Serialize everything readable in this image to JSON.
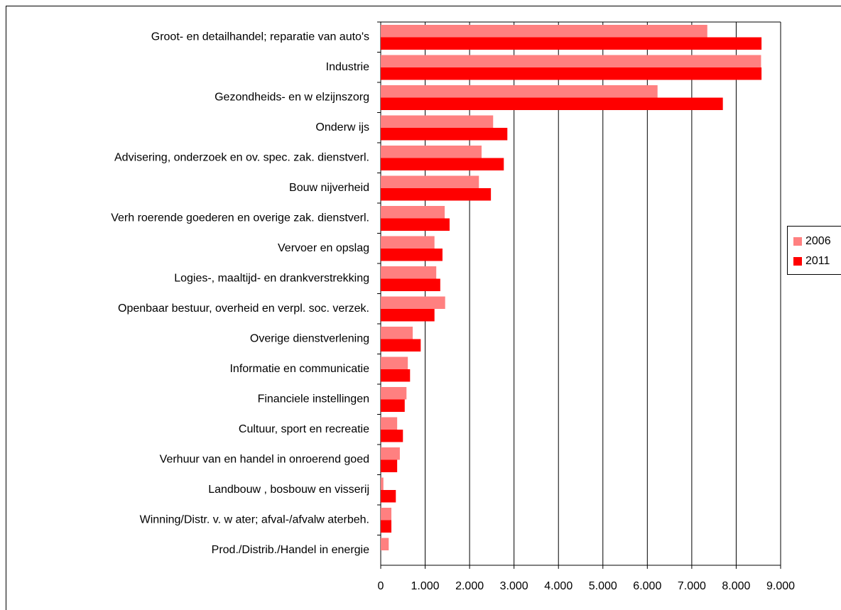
{
  "chart_data": {
    "type": "hbar",
    "categories": [
      "Groot- en detailhandel; reparatie van auto's",
      "Industrie",
      "Gezondheids- en w elzijnszorg",
      "Onderw ijs",
      "Advisering, onderzoek en ov. spec. zak. dienstverl.",
      "Bouw nijverheid",
      "Verh roerende goederen en overige zak. dienstverl.",
      "Vervoer en opslag",
      "Logies-, maaltijd- en drankverstrekking",
      "Openbaar bestuur, overheid en verpl. soc. verzek.",
      "Overige dienstverlening",
      "Informatie en communicatie",
      "Financiele instellingen",
      "Cultuur, sport en recreatie",
      "Verhuur van en handel in onroerend goed",
      "Landbouw , bosbouw en visserij",
      "Winning/Distr. v. w ater; afval-/afvalw aterbeh.",
      "Prod./Distrib./Handel in energie"
    ],
    "series": [
      {
        "name": "2006",
        "color": "#ff8080",
        "values": [
          7350,
          8560,
          6230,
          2530,
          2270,
          2210,
          1440,
          1210,
          1250,
          1450,
          720,
          610,
          580,
          370,
          430,
          60,
          240,
          180
        ]
      },
      {
        "name": "2011",
        "color": "#ff0000",
        "values": [
          8570,
          8570,
          7700,
          2850,
          2770,
          2480,
          1550,
          1390,
          1340,
          1210,
          900,
          660,
          540,
          500,
          370,
          340,
          240,
          0
        ]
      }
    ],
    "xlim": [
      0,
      9000
    ],
    "xticks": [
      0,
      {
        "value": 1000,
        "label": "1.000"
      },
      {
        "value": 2000,
        "label": "2.000"
      },
      {
        "value": 3000,
        "label": "3.000"
      },
      {
        "value": 4000,
        "label": "4.000"
      },
      {
        "value": 5000,
        "label": "5.000"
      },
      {
        "value": 6000,
        "label": "6.000"
      },
      {
        "value": 7000,
        "label": "7.000"
      },
      {
        "value": 8000,
        "label": "8.000"
      },
      {
        "value": 9000,
        "label": "9.000"
      }
    ],
    "grid": true,
    "legend": "right"
  }
}
